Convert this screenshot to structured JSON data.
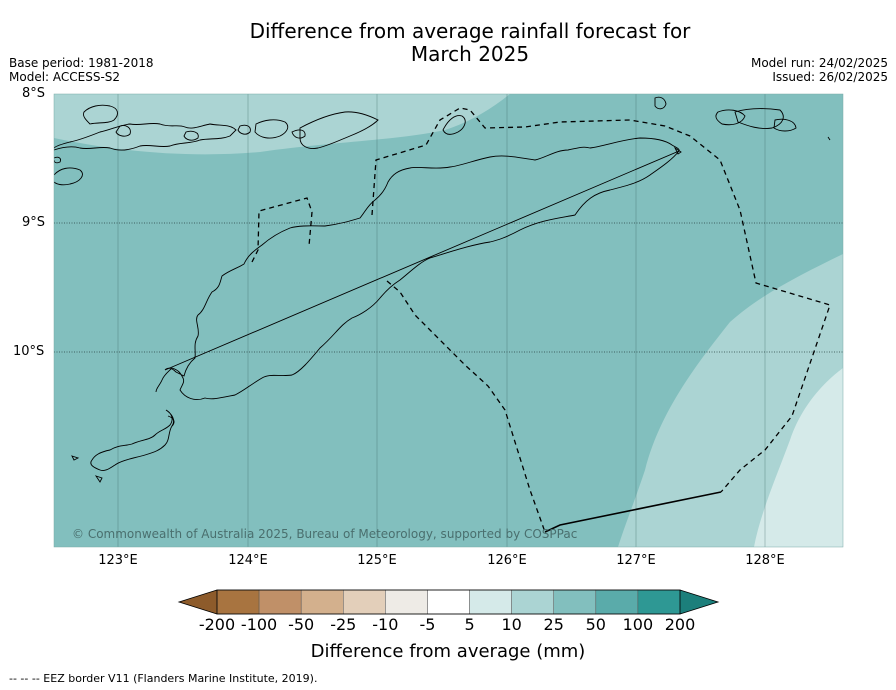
{
  "title_line1": "Difference from average rainfall forecast for",
  "title_line2": "March 2025",
  "meta_left": [
    "Base period: 1981-2018",
    "Model: ACCESS-S2"
  ],
  "meta_right": [
    "Model run: 24/02/2025",
    "Issued: 26/02/2025"
  ],
  "lat_labels": [
    "8°S",
    "9°S",
    "10°S"
  ],
  "lon_labels": [
    "123°E",
    "124°E",
    "125°E",
    "126°E",
    "127°E",
    "128°E"
  ],
  "copyright": "© Commonwealth of Australia 2025, Bureau of Meteorology, supported by COSPPac",
  "colorbar": {
    "title": "Difference from average (mm)",
    "tick_labels": [
      "-200",
      "-100",
      "-50",
      "-25",
      "-10",
      "-5",
      "5",
      "10",
      "25",
      "50",
      "100",
      "200"
    ],
    "colors": [
      "#8d5b2b",
      "#a87440",
      "#c09068",
      "#d3b08d",
      "#e3cfba",
      "#eeebe6",
      "#ffffff",
      "#d5eae9",
      "#abd4d3",
      "#82bfbe",
      "#5aabaa",
      "#2e9894",
      "#1c7f7b"
    ]
  },
  "footer": "--  --  -- EEZ border V11 (Flanders Marine Institute, 2019)."
}
